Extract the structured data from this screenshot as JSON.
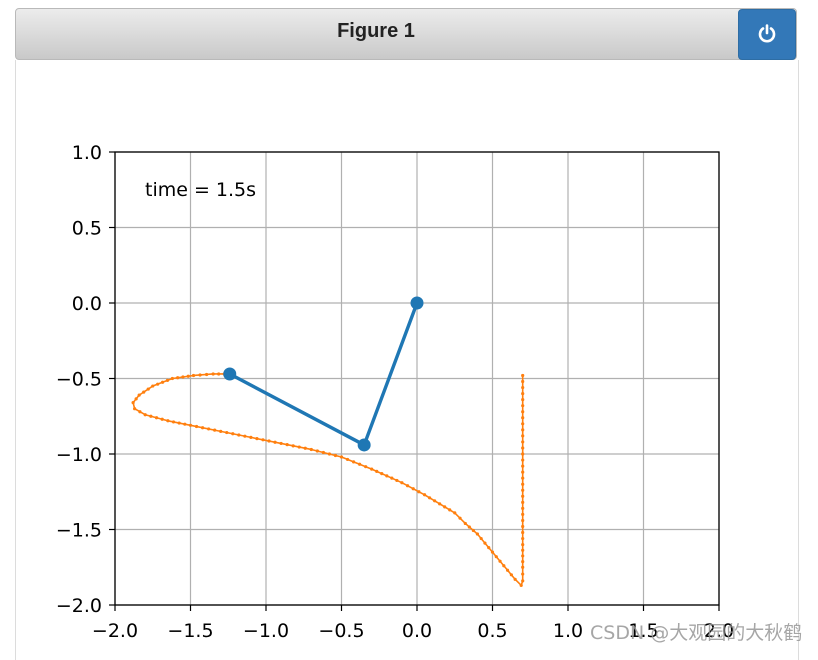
{
  "window": {
    "title": "Figure 1",
    "power_icon": "power-icon"
  },
  "watermark": "CSDN @大观园的大秋鹤",
  "colors": {
    "pendulum": "#1f77b4",
    "trace": "#ff7f0e",
    "grid": "#b0b0b0",
    "toolbar_button": "#3378b8"
  },
  "chart_data": {
    "type": "line",
    "annotation": "time = 1.5s",
    "xlim": [
      -2.0,
      2.0
    ],
    "ylim": [
      -2.0,
      1.0
    ],
    "xticks": [
      -2.0,
      -1.5,
      -1.0,
      -0.5,
      0.0,
      0.5,
      1.0,
      1.5,
      2.0
    ],
    "yticks": [
      1.0,
      0.5,
      0.0,
      -0.5,
      -1.0,
      -1.5,
      -2.0
    ],
    "xtick_labels": [
      "−2.0",
      "−1.5",
      "−1.0",
      "−0.5",
      "0.0",
      "0.5",
      "1.0",
      "1.5",
      "2.0"
    ],
    "ytick_labels": [
      "1.0",
      "0.5",
      "0.0",
      "−0.5",
      "−1.0",
      "−1.5",
      "−2.0"
    ],
    "grid": true,
    "series": [
      {
        "kind": "pendulum",
        "x": [
          0.0,
          -0.35,
          -1.24
        ],
        "y": [
          0.0,
          -0.94,
          -0.47
        ]
      },
      {
        "kind": "trace",
        "x": [
          0.7,
          0.7,
          0.7,
          0.7,
          0.7,
          0.7,
          0.7,
          0.7,
          0.7,
          0.69,
          0.65,
          0.6,
          0.55,
          0.5,
          0.45,
          0.4,
          0.32,
          0.25,
          0.15,
          0.05,
          -0.1,
          -0.3,
          -0.5,
          -0.7,
          -0.9,
          -1.1,
          -1.3,
          -1.5,
          -1.65,
          -1.8,
          -1.87,
          -1.88,
          -1.84,
          -1.75,
          -1.62,
          -1.48,
          -1.35,
          -1.24
        ],
        "y": [
          -0.48,
          -0.6,
          -0.8,
          -1.0,
          -1.2,
          -1.4,
          -1.6,
          -1.75,
          -1.84,
          -1.87,
          -1.83,
          -1.77,
          -1.71,
          -1.65,
          -1.59,
          -1.53,
          -1.46,
          -1.39,
          -1.33,
          -1.27,
          -1.19,
          -1.1,
          -1.02,
          -0.97,
          -0.93,
          -0.89,
          -0.85,
          -0.81,
          -0.78,
          -0.74,
          -0.7,
          -0.66,
          -0.61,
          -0.55,
          -0.5,
          -0.48,
          -0.47,
          -0.47
        ]
      }
    ]
  }
}
